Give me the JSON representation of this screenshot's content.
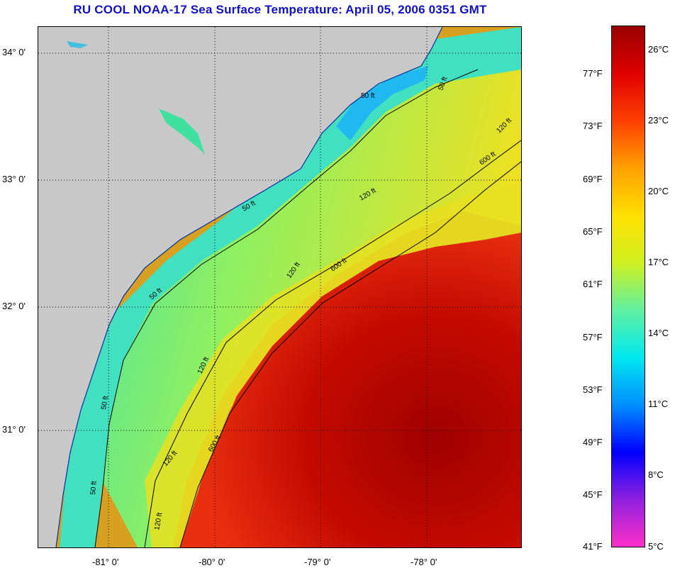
{
  "title": "RU COOL  NOAA-17  Sea Surface Temperature:  April 05, 2006 0351 GMT",
  "map": {
    "lat_labels": [
      "34° 0'",
      "33° 0'",
      "32° 0'",
      "31° 0'"
    ],
    "lon_labels": [
      "-81° 0'",
      "-80° 0'",
      "-79° 0'",
      "-78° 0'"
    ],
    "contour_labels": [
      "50 ft",
      "50 ft",
      "50 ft",
      "50 ft",
      "50 ft",
      "50 ft",
      "120 ft",
      "120 ft",
      "120 ft",
      "120 ft",
      "120 ft",
      "120 ft",
      "600 ft",
      "600 ft",
      "600 ft"
    ],
    "colors": {
      "land": "#c8c8c8",
      "warm_core": "#b00000",
      "gulf_stream": "#e02010",
      "shelf_mid": "#e8e018",
      "coastal": "#30d8c0",
      "cold_coastal": "#20b0f0",
      "graticule": "#000000"
    }
  },
  "colorbar": {
    "fahrenheit_labels": [
      "77°F",
      "73°F",
      "69°F",
      "65°F",
      "61°F",
      "57°F",
      "53°F",
      "49°F",
      "45°F",
      "41°F"
    ],
    "celsius_labels": [
      "26°C",
      "23°C",
      "20°C",
      "17°C",
      "14°C",
      "11°C",
      "8°C",
      "5°C"
    ],
    "colors": [
      "#ff30c8",
      "#9020e0",
      "#0000ff",
      "#0090ff",
      "#00e8f0",
      "#60f0a0",
      "#d0f020",
      "#ffe000",
      "#ffa000",
      "#ff4000",
      "#e00000",
      "#9a0000"
    ]
  }
}
